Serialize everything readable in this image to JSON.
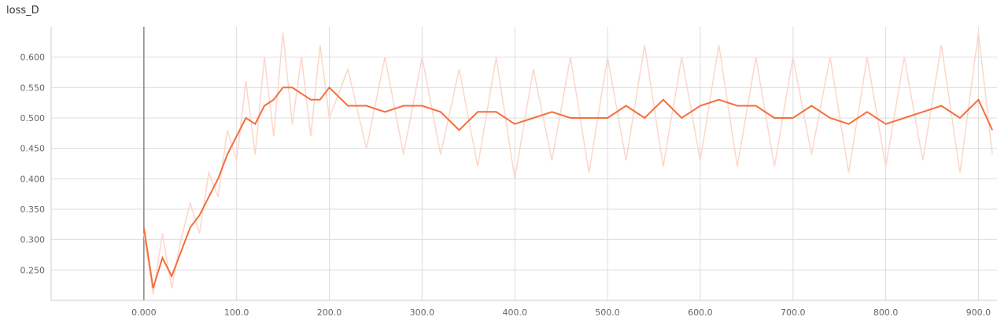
{
  "title": "loss_D",
  "chart_data": {
    "type": "line",
    "title": "loss_D",
    "xlabel": "",
    "ylabel": "",
    "xlim": [
      -100,
      920
    ],
    "ylim": [
      0.2,
      0.65
    ],
    "x_ticks": [
      "0.000",
      "100.0",
      "200.0",
      "300.0",
      "400.0",
      "500.0",
      "600.0",
      "700.0",
      "800.0",
      "900.0"
    ],
    "y_ticks": [
      "0.250",
      "0.300",
      "0.350",
      "0.400",
      "0.450",
      "0.500",
      "0.550",
      "0.600"
    ],
    "grid": true,
    "colors": {
      "smoothed": "#f56e3c",
      "raw": "#fbd7c9",
      "zero_line": "#888888",
      "grid": "#dddddd"
    },
    "series": [
      {
        "role": "smoothed",
        "x": [
          0,
          10,
          20,
          30,
          40,
          50,
          60,
          70,
          80,
          90,
          100,
          110,
          120,
          130,
          140,
          150,
          160,
          170,
          180,
          190,
          200,
          220,
          240,
          260,
          280,
          300,
          320,
          340,
          360,
          380,
          400,
          420,
          440,
          460,
          480,
          500,
          520,
          540,
          560,
          580,
          600,
          620,
          640,
          660,
          680,
          700,
          720,
          740,
          760,
          780,
          800,
          820,
          840,
          860,
          880,
          900,
          915
        ],
        "y": [
          0.32,
          0.22,
          0.27,
          0.24,
          0.28,
          0.32,
          0.34,
          0.37,
          0.4,
          0.44,
          0.47,
          0.5,
          0.49,
          0.52,
          0.53,
          0.55,
          0.55,
          0.54,
          0.53,
          0.53,
          0.55,
          0.52,
          0.52,
          0.51,
          0.52,
          0.52,
          0.51,
          0.48,
          0.51,
          0.51,
          0.49,
          0.5,
          0.51,
          0.5,
          0.5,
          0.5,
          0.52,
          0.5,
          0.53,
          0.5,
          0.52,
          0.53,
          0.52,
          0.52,
          0.5,
          0.5,
          0.52,
          0.5,
          0.49,
          0.51,
          0.49,
          0.5,
          0.51,
          0.52,
          0.5,
          0.53,
          0.48
        ]
      },
      {
        "role": "raw",
        "x": [
          0,
          10,
          20,
          30,
          40,
          50,
          60,
          70,
          80,
          90,
          100,
          110,
          120,
          130,
          140,
          150,
          160,
          170,
          180,
          190,
          200,
          220,
          240,
          260,
          280,
          300,
          320,
          340,
          360,
          380,
          400,
          420,
          440,
          460,
          480,
          500,
          520,
          540,
          560,
          580,
          600,
          620,
          640,
          660,
          680,
          700,
          720,
          740,
          760,
          780,
          800,
          820,
          840,
          860,
          880,
          900,
          915
        ],
        "y": [
          0.31,
          0.21,
          0.31,
          0.22,
          0.3,
          0.36,
          0.31,
          0.41,
          0.37,
          0.48,
          0.43,
          0.56,
          0.44,
          0.6,
          0.47,
          0.64,
          0.49,
          0.6,
          0.47,
          0.62,
          0.5,
          0.58,
          0.45,
          0.6,
          0.44,
          0.6,
          0.44,
          0.58,
          0.42,
          0.6,
          0.4,
          0.58,
          0.43,
          0.6,
          0.41,
          0.6,
          0.43,
          0.62,
          0.42,
          0.6,
          0.43,
          0.62,
          0.42,
          0.6,
          0.42,
          0.6,
          0.44,
          0.6,
          0.41,
          0.6,
          0.42,
          0.6,
          0.43,
          0.62,
          0.41,
          0.64,
          0.44
        ]
      }
    ]
  }
}
